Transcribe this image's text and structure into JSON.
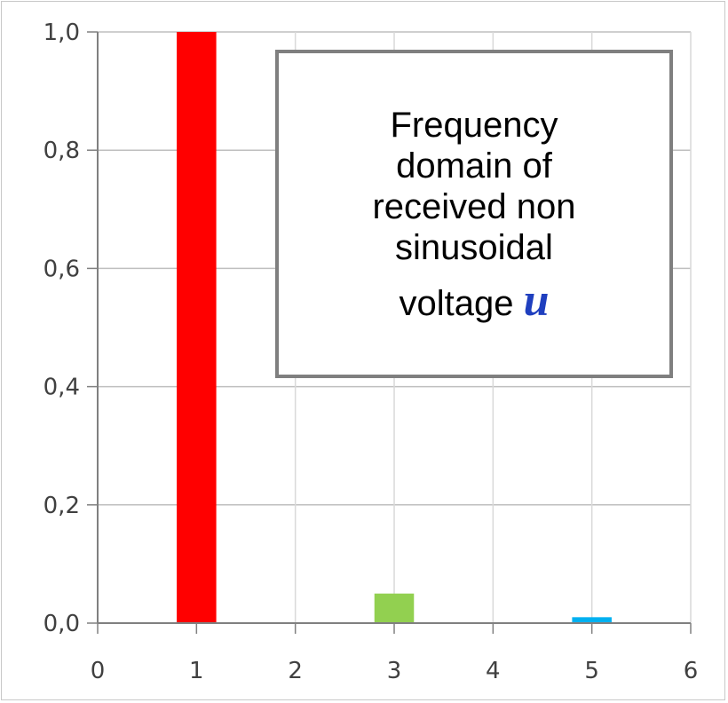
{
  "chart_data": {
    "type": "bar",
    "x": [
      1,
      3,
      5
    ],
    "values": [
      1.0,
      0.05,
      0.01
    ],
    "bar_colors": [
      "#ff0000",
      "#92d050",
      "#00b0f0"
    ],
    "xlim": [
      0,
      6
    ],
    "ylim": [
      0,
      1.0
    ],
    "x_ticks": [
      "0",
      "1",
      "2",
      "3",
      "4",
      "5",
      "6"
    ],
    "y_ticks": [
      "0,0",
      "0,2",
      "0,4",
      "0,6",
      "0,8",
      "1,0"
    ],
    "grid": true,
    "annotation": {
      "lines": [
        "Frequency",
        "domain of",
        "received non",
        "sinusoidal"
      ],
      "last_line": "voltage",
      "variable": "u"
    }
  }
}
